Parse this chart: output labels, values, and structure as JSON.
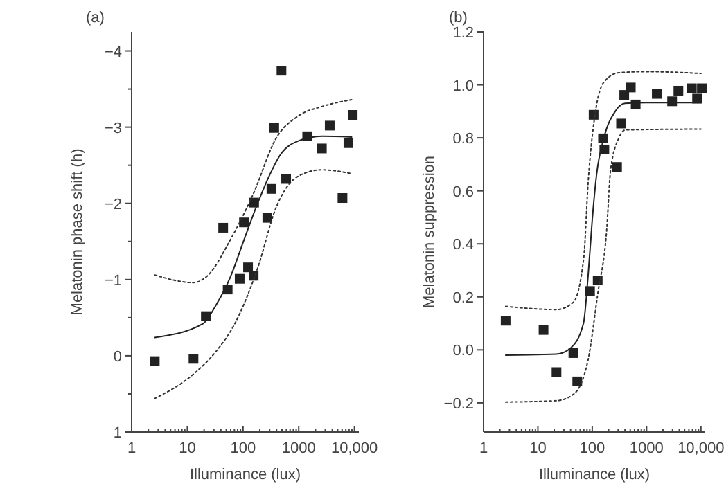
{
  "chart_data": [
    {
      "type": "scatter",
      "title": "(a)",
      "xlabel": "Illuminance (lux)",
      "ylabel": "Melatonin phase shift (h)",
      "log": "x",
      "xlim": [
        1,
        12000
      ],
      "ylim": [
        1,
        -4.25
      ],
      "xticks": [
        1,
        {
          "value": 2,
          "label": null
        },
        {
          "value": 3,
          "label": null
        },
        {
          "value": 4,
          "label": null
        },
        {
          "value": 5,
          "label": null
        },
        {
          "value": 6,
          "label": null
        },
        {
          "value": 7,
          "label": null
        },
        {
          "value": 8,
          "label": null
        },
        {
          "value": 9,
          "label": null
        },
        10,
        {
          "value": 20,
          "label": null
        },
        {
          "value": 30,
          "label": null
        },
        {
          "value": 40,
          "label": null
        },
        {
          "value": 50,
          "label": null
        },
        {
          "value": 60,
          "label": null
        },
        {
          "value": 70,
          "label": null
        },
        {
          "value": 80,
          "label": null
        },
        {
          "value": 90,
          "label": null
        },
        100,
        {
          "value": 200,
          "label": null
        },
        {
          "value": 300,
          "label": null
        },
        {
          "value": 400,
          "label": null
        },
        {
          "value": 500,
          "label": null
        },
        {
          "value": 600,
          "label": null
        },
        {
          "value": 700,
          "label": null
        },
        {
          "value": 800,
          "label": null
        },
        {
          "value": 900,
          "label": null
        },
        1000,
        {
          "value": 2000,
          "label": null
        },
        {
          "value": 3000,
          "label": null
        },
        {
          "value": 4000,
          "label": null
        },
        {
          "value": 5000,
          "label": null
        },
        {
          "value": 6000,
          "label": null
        },
        {
          "value": 7000,
          "label": null
        },
        {
          "value": 8000,
          "label": null
        },
        {
          "value": 9000,
          "label": null
        },
        {
          "value": 10000,
          "label": "10,000"
        }
      ],
      "yticks": [
        {
          "value": -4,
          "label": "−4"
        },
        {
          "value": -3.5,
          "label": null
        },
        {
          "value": -3,
          "label": "−3"
        },
        {
          "value": -2.5,
          "label": null
        },
        {
          "value": -2,
          "label": "−2"
        },
        {
          "value": -1.5,
          "label": null
        },
        {
          "value": -1,
          "label": "−1"
        },
        {
          "value": -0.5,
          "label": null
        },
        0,
        {
          "value": 0.5,
          "label": null
        },
        1
      ],
      "grid": false,
      "series": [
        {
          "marker": "square",
          "color": "#222222",
          "x": [
            2.6,
            12.9,
            21.5,
            44,
            53,
            87,
            104,
            123,
            155,
            158,
            273,
            324,
            363,
            490,
            594,
            1420,
            2600,
            3600,
            6100,
            7800,
            9300
          ],
          "values": [
            0.07,
            0.04,
            -0.52,
            -1.68,
            -0.87,
            -1.01,
            -1.75,
            -1.16,
            -1.05,
            -2.01,
            -1.81,
            -2.19,
            -2.99,
            -3.74,
            -2.32,
            -2.88,
            -2.72,
            -3.02,
            -2.07,
            -2.79,
            -3.16
          ]
        },
        {
          "type": "line",
          "marker": "none",
          "line_style": "solid",
          "color": "#222222",
          "x": [
            2.6,
            19,
            33,
            59,
            104,
            183,
            295,
            470,
            1000,
            2600,
            8900
          ],
          "values": [
            -0.24,
            -0.42,
            -0.67,
            -1.03,
            -1.52,
            -2.0,
            -2.36,
            -2.64,
            -2.82,
            -2.88,
            -2.87
          ]
        },
        {
          "type": "line",
          "marker": "none",
          "line_style": "dotted",
          "color": "#333333",
          "x": [
            2.6,
            12.9,
            23,
            59,
            152,
            390,
            1000,
            2600,
            8900
          ],
          "values": [
            -1.06,
            -0.96,
            -1.05,
            -1.52,
            -2.12,
            -2.85,
            -3.15,
            -3.27,
            -3.36
          ]
        },
        {
          "type": "line",
          "marker": "none",
          "line_style": "dotted",
          "color": "#333333",
          "x": [
            2.6,
            12.9,
            33,
            71,
            183,
            390,
            1000,
            2600,
            8900
          ],
          "values": [
            0.56,
            0.24,
            -0.06,
            -0.42,
            -1.15,
            -1.94,
            -2.36,
            -2.44,
            -2.39
          ]
        }
      ]
    },
    {
      "type": "scatter",
      "title": "(b)",
      "xlabel": "Illuminance (lux)",
      "ylabel": "Melatonin suppression",
      "log": "x",
      "xlim": [
        1,
        12000
      ],
      "ylim": [
        -0.31,
        1.2
      ],
      "xticks": [
        1,
        {
          "value": 2,
          "label": null
        },
        {
          "value": 3,
          "label": null
        },
        {
          "value": 4,
          "label": null
        },
        {
          "value": 5,
          "label": null
        },
        {
          "value": 6,
          "label": null
        },
        {
          "value": 7,
          "label": null
        },
        {
          "value": 8,
          "label": null
        },
        {
          "value": 9,
          "label": null
        },
        10,
        {
          "value": 20,
          "label": null
        },
        {
          "value": 30,
          "label": null
        },
        {
          "value": 40,
          "label": null
        },
        {
          "value": 50,
          "label": null
        },
        {
          "value": 60,
          "label": null
        },
        {
          "value": 70,
          "label": null
        },
        {
          "value": 80,
          "label": null
        },
        {
          "value": 90,
          "label": null
        },
        100,
        {
          "value": 200,
          "label": null
        },
        {
          "value": 300,
          "label": null
        },
        {
          "value": 400,
          "label": null
        },
        {
          "value": 500,
          "label": null
        },
        {
          "value": 600,
          "label": null
        },
        {
          "value": 700,
          "label": null
        },
        {
          "value": 800,
          "label": null
        },
        {
          "value": 900,
          "label": null
        },
        1000,
        {
          "value": 2000,
          "label": null
        },
        {
          "value": 3000,
          "label": null
        },
        {
          "value": 4000,
          "label": null
        },
        {
          "value": 5000,
          "label": null
        },
        {
          "value": 6000,
          "label": null
        },
        {
          "value": 7000,
          "label": null
        },
        {
          "value": 8000,
          "label": null
        },
        {
          "value": 9000,
          "label": null
        },
        {
          "value": 10000,
          "label": "10,000"
        }
      ],
      "yticks": [
        {
          "value": -0.2,
          "label": "−0.2"
        },
        {
          "value": 0,
          "label": "0.0"
        },
        {
          "value": 0.2,
          "label": "0.2"
        },
        {
          "value": 0.4,
          "label": "0.4"
        },
        {
          "value": 0.6,
          "label": "0.6"
        },
        {
          "value": 0.8,
          "label": "0.8"
        },
        {
          "value": 1,
          "label": "1.0"
        },
        {
          "value": 1.2,
          "label": "1.2"
        }
      ],
      "grid": false,
      "series": [
        {
          "marker": "square",
          "color": "#222222",
          "x": [
            2.55,
            12.7,
            22,
            45,
            53,
            91,
            106,
            126,
            158,
            167,
            286,
            339,
            388,
            512,
            630,
            1540,
            2950,
            3850,
            6800,
            8500,
            10400
          ],
          "values": [
            0.11,
            0.075,
            -0.084,
            -0.012,
            -0.119,
            0.222,
            0.887,
            0.262,
            0.798,
            0.756,
            0.69,
            0.854,
            0.962,
            0.99,
            0.926,
            0.966,
            0.938,
            0.978,
            0.987,
            0.948,
            0.987
          ]
        },
        {
          "type": "line",
          "marker": "none",
          "line_style": "solid",
          "color": "#222222",
          "x": [
            2.55,
            22,
            40,
            69,
            84,
            100,
            120,
            164,
            265,
            400,
            1000,
            10000
          ],
          "values": [
            -0.02,
            -0.016,
            0.007,
            0.1,
            0.28,
            0.49,
            0.66,
            0.8,
            0.9,
            0.93,
            0.933,
            0.933
          ]
        },
        {
          "type": "line",
          "marker": "none",
          "line_style": "dotted",
          "color": "#333333",
          "x": [
            2.55,
            22,
            45,
            70,
            84,
            117,
            164,
            310,
            1000,
            10000
          ],
          "values": [
            0.164,
            0.152,
            0.18,
            0.35,
            0.63,
            0.91,
            1.01,
            1.046,
            1.05,
            1.043
          ]
        },
        {
          "type": "line",
          "marker": "none",
          "line_style": "dotted",
          "color": "#333333",
          "x": [
            2.55,
            22,
            45,
            84,
            126,
            184,
            218,
            310,
            410,
            10000
          ],
          "values": [
            -0.197,
            -0.192,
            -0.168,
            -0.037,
            0.21,
            0.45,
            0.68,
            0.8,
            0.83,
            0.833
          ]
        }
      ]
    }
  ]
}
